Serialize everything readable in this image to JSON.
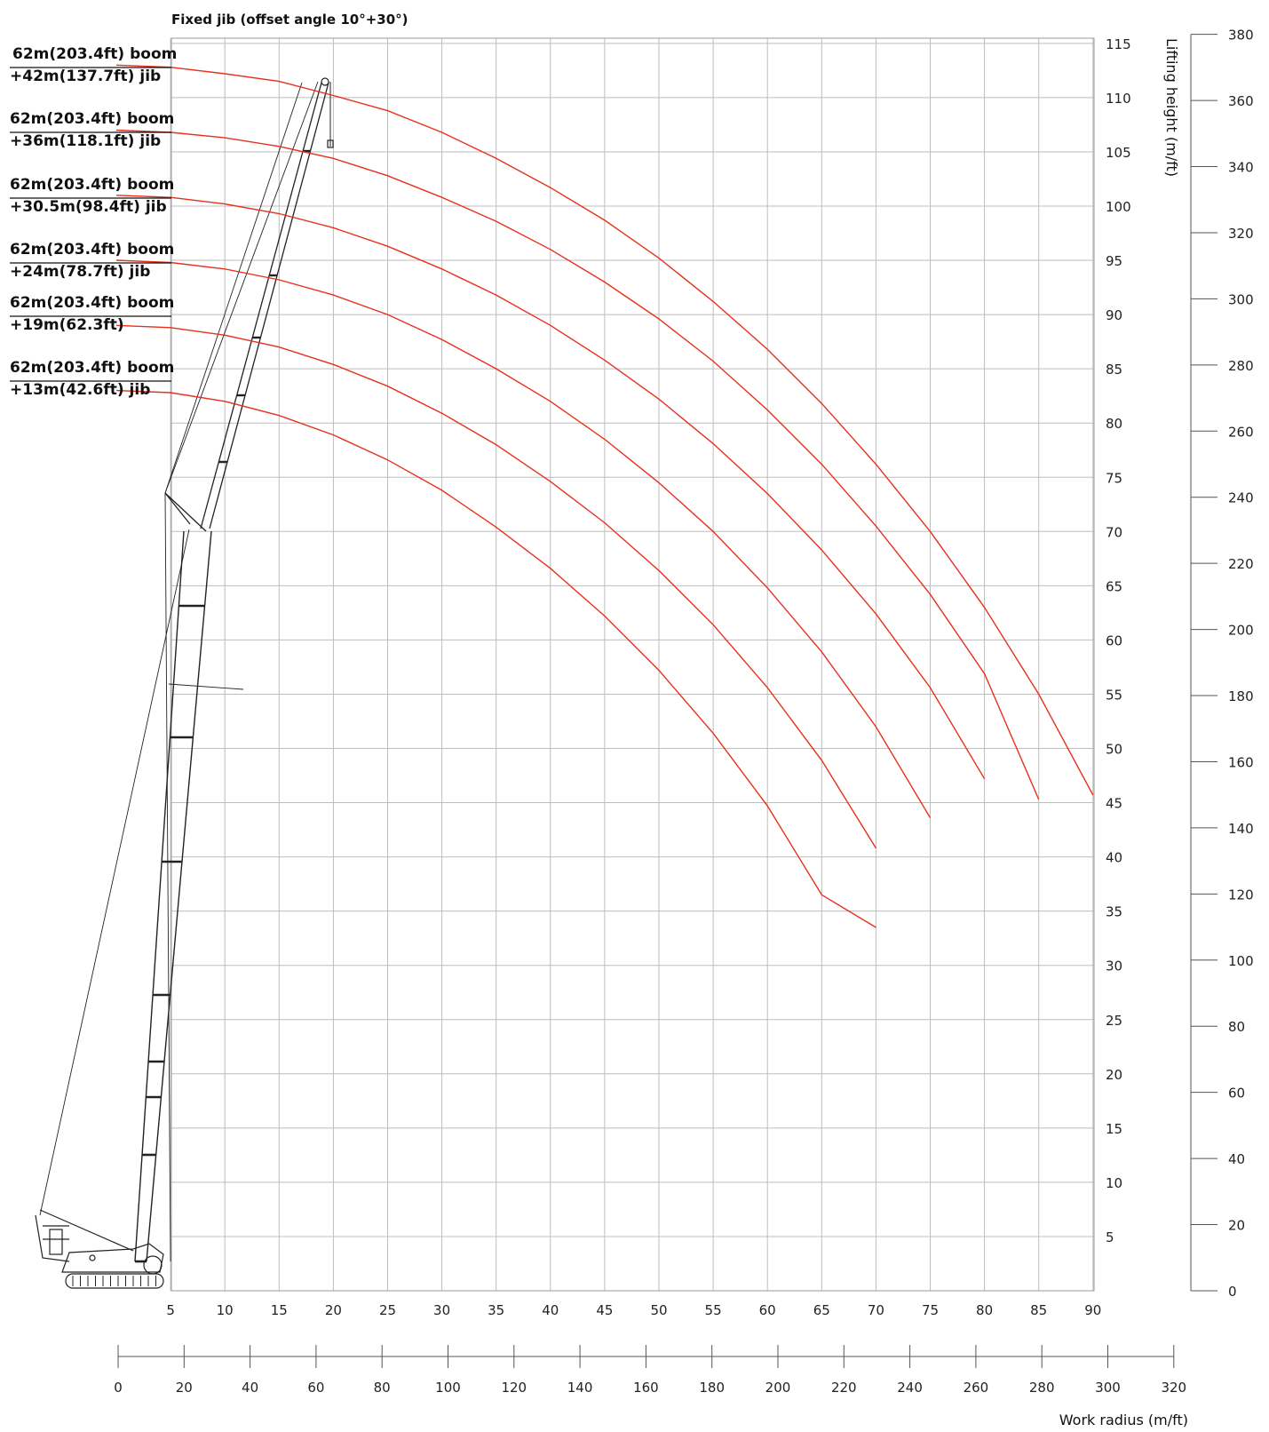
{
  "chart_data": {
    "type": "line",
    "title": "Fixed jib (offset angle 10°+30°)",
    "xlabel": "Work radius (m/ft)",
    "ylabel": "Lifting height (m/ft)",
    "x_ticks_m": [
      5,
      10,
      15,
      20,
      25,
      30,
      35,
      40,
      45,
      50,
      55,
      60,
      65,
      70,
      75,
      80,
      85,
      90
    ],
    "x_ticks_ft": [
      0,
      20,
      40,
      60,
      80,
      100,
      120,
      140,
      160,
      180,
      200,
      220,
      240,
      260,
      280,
      300,
      320
    ],
    "y_ticks_m": [
      5,
      10,
      15,
      20,
      25,
      30,
      35,
      40,
      45,
      50,
      55,
      60,
      65,
      70,
      75,
      80,
      85,
      90,
      95,
      100,
      105,
      110,
      115
    ],
    "y_ticks_ft": [
      0,
      20,
      40,
      60,
      80,
      100,
      120,
      140,
      160,
      180,
      200,
      220,
      240,
      260,
      280,
      300,
      320,
      340,
      360,
      380
    ],
    "xlim": [
      0,
      90
    ],
    "ylim": [
      0,
      115
    ],
    "line_color": "#e8301c",
    "grid": true,
    "series": [
      {
        "label_line1": "62m(203.4ft) boom",
        "label_line2": "+42m(137.7ft) jib",
        "x": [
          0,
          5,
          10,
          15,
          20,
          25,
          30,
          35,
          40,
          45,
          50,
          55,
          60,
          65,
          70,
          75,
          80,
          85,
          90
        ],
        "y": [
          113.0,
          112.8,
          112.2,
          111.5,
          110.2,
          108.8,
          106.8,
          104.4,
          101.7,
          98.7,
          95.2,
          91.2,
          86.8,
          81.8,
          76.2,
          70.0,
          63.0,
          55.0,
          45.7
        ]
      },
      {
        "label_line1": "62m(203.4ft) boom",
        "label_line2": "+36m(118.1ft) jib",
        "x": [
          0,
          5,
          10,
          15,
          20,
          25,
          30,
          35,
          40,
          45,
          50,
          55,
          60,
          65,
          70,
          75,
          80,
          85
        ],
        "y": [
          107.0,
          106.8,
          106.3,
          105.5,
          104.4,
          102.8,
          100.8,
          98.6,
          96.0,
          93.0,
          89.6,
          85.7,
          81.2,
          76.2,
          70.5,
          64.2,
          56.9,
          45.3
        ]
      },
      {
        "label_line1": "62m(203.4ft) boom",
        "label_line2": "+30.5m(98.4ft) jib",
        "x": [
          0,
          5,
          10,
          15,
          20,
          25,
          30,
          35,
          40,
          45,
          50,
          55,
          60,
          65,
          70,
          75,
          80
        ],
        "y": [
          101.0,
          100.8,
          100.2,
          99.3,
          98.0,
          96.3,
          94.2,
          91.8,
          89.0,
          85.8,
          82.2,
          78.1,
          73.5,
          68.3,
          62.4,
          55.6,
          47.2
        ]
      },
      {
        "label_line1": "62m(203.4ft) boom",
        "label_line2": "+24m(78.7ft) jib",
        "x": [
          0,
          5,
          10,
          15,
          20,
          25,
          30,
          35,
          40,
          45,
          50,
          55,
          60,
          65,
          70,
          75
        ],
        "y": [
          95.0,
          94.8,
          94.2,
          93.2,
          91.8,
          90.0,
          87.7,
          85.0,
          82.0,
          78.5,
          74.5,
          70.0,
          64.8,
          58.9,
          52.0,
          43.6
        ]
      },
      {
        "label_line1": "62m(203.4ft) boom",
        "label_line2": "+19m(62.3ft)",
        "x": [
          0,
          5,
          10,
          15,
          20,
          25,
          30,
          35,
          40,
          45,
          50,
          55,
          60,
          65,
          70
        ],
        "y": [
          89.0,
          88.8,
          88.1,
          87.0,
          85.4,
          83.4,
          80.9,
          78.0,
          74.6,
          70.8,
          66.4,
          61.4,
          55.6,
          48.9,
          40.8
        ]
      },
      {
        "label_line1": "62m(203.4ft) boom",
        "label_line2": "+13m(42.6ft) jib",
        "x": [
          0,
          5,
          10,
          15,
          20,
          25,
          30,
          35,
          40,
          45,
          50,
          55,
          60,
          65,
          70
        ],
        "y": [
          83.0,
          82.8,
          82.0,
          80.7,
          78.9,
          76.6,
          73.8,
          70.4,
          66.6,
          62.2,
          57.2,
          51.4,
          44.7,
          36.5,
          33.5
        ]
      }
    ]
  }
}
